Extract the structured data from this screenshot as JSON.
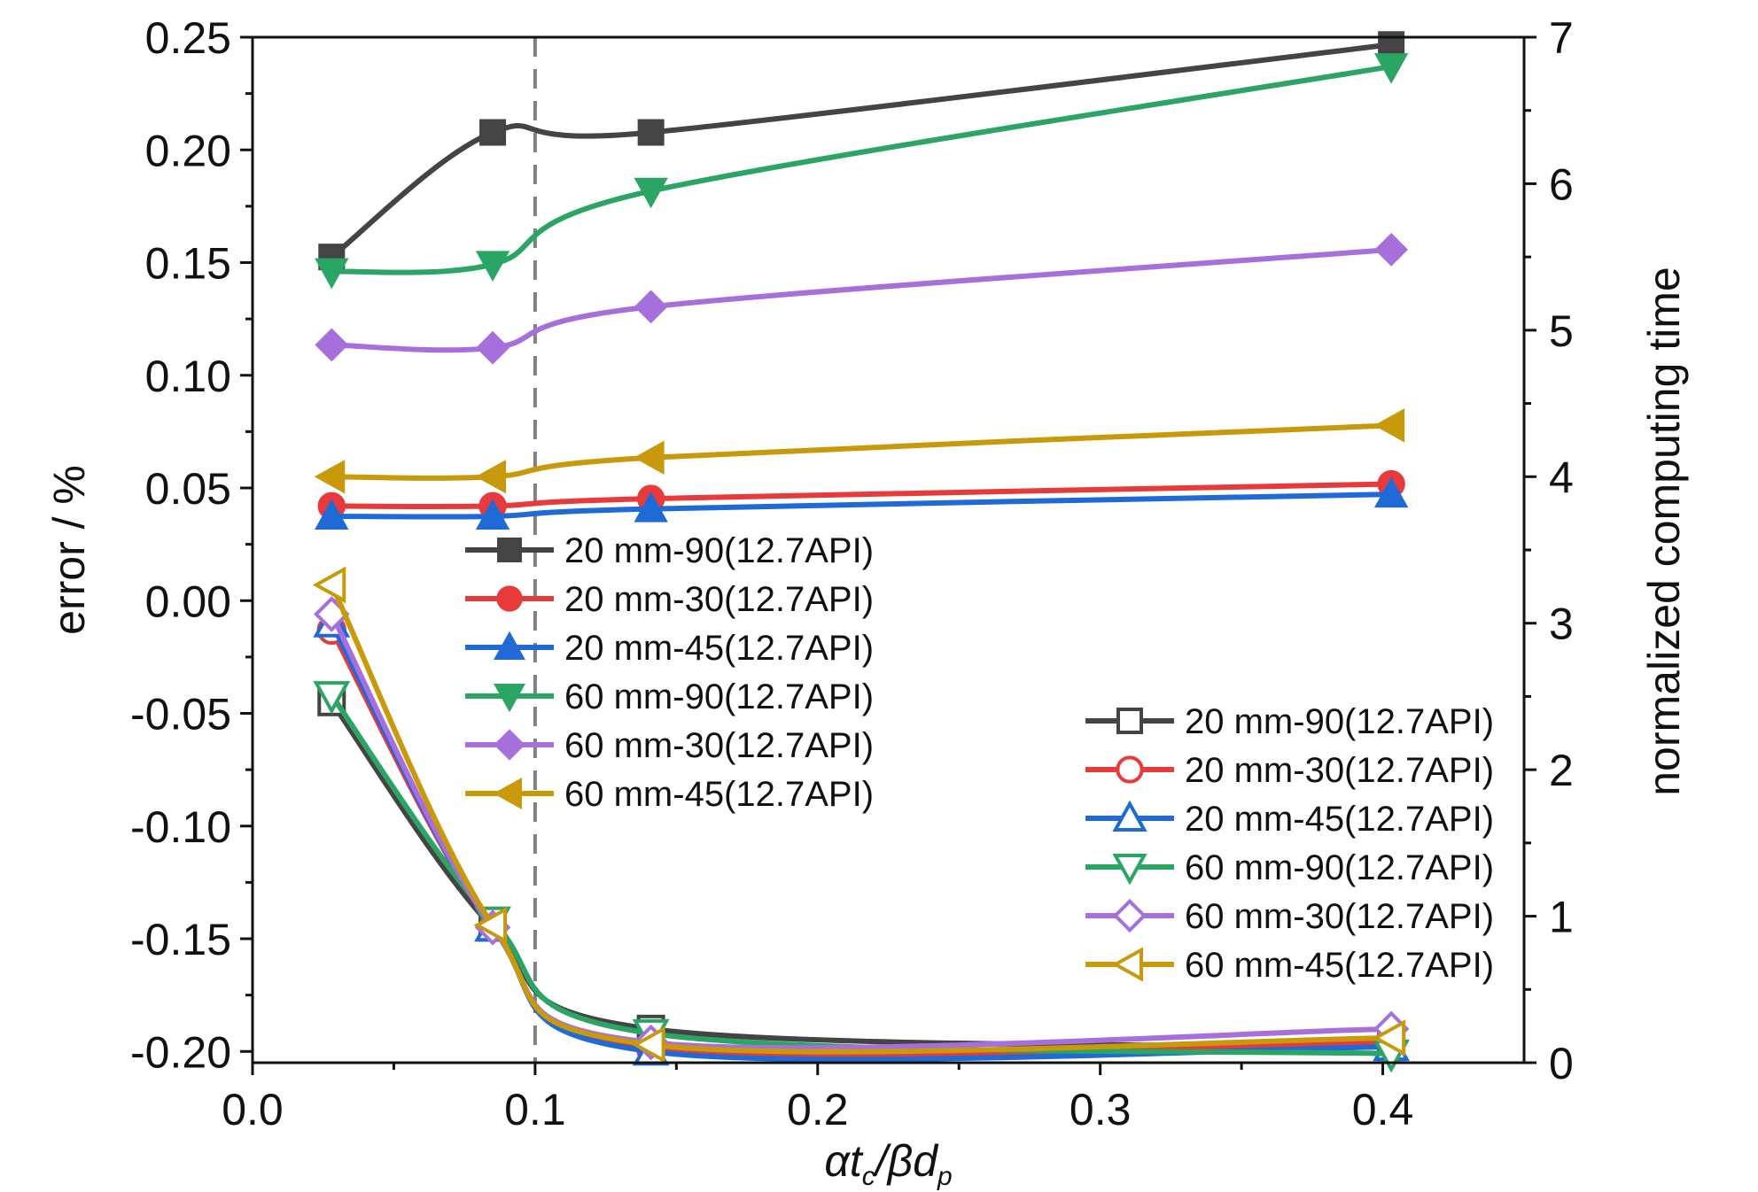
{
  "chart_data": {
    "type": "line",
    "x_axis": {
      "label_parts": [
        "αt",
        "c",
        "/βd",
        "p"
      ],
      "range": [
        0.0,
        0.45
      ],
      "ticks": [
        0.0,
        0.1,
        0.2,
        0.3,
        0.4
      ],
      "tick_labels": [
        "0.0",
        "0.1",
        "0.2",
        "0.3",
        "0.4"
      ]
    },
    "y_left": {
      "label": "error / %",
      "range": [
        -0.205,
        0.25
      ],
      "ticks": [
        0.25,
        0.2,
        0.15,
        0.1,
        0.05,
        0.0,
        -0.05,
        -0.1,
        -0.15,
        -0.2
      ],
      "tick_labels": [
        "0.25",
        "0.20",
        "0.15",
        "0.10",
        "0.05",
        "0.00",
        "-0.05",
        "-0.10",
        "-0.15",
        "-0.20"
      ]
    },
    "y_right": {
      "label": "normalized computing time",
      "range": [
        0,
        7
      ],
      "ticks": [
        0,
        1,
        2,
        3,
        4,
        5,
        6,
        7
      ],
      "tick_labels": [
        "0",
        "1",
        "2",
        "3",
        "4",
        "5",
        "6",
        "7"
      ]
    },
    "vertical_reference_line": {
      "x": 0.1,
      "style": "dashed",
      "color": "#808080"
    },
    "x": [
      0.028,
      0.085,
      0.141,
      0.403
    ],
    "series": [
      {
        "name": "20 mm-90(12.7API)",
        "axis": "right",
        "marker": "square",
        "filled": true,
        "color": "#444444",
        "values": [
          5.5,
          6.35,
          6.35,
          6.95
        ]
      },
      {
        "name": "20 mm-30(12.7API)",
        "axis": "right",
        "marker": "circle",
        "filled": true,
        "color": "#e8393b",
        "values": [
          3.8,
          3.8,
          3.85,
          3.95
        ]
      },
      {
        "name": "20 mm-45(12.7API)",
        "axis": "right",
        "marker": "triangle-up",
        "filled": true,
        "color": "#1f6ad6",
        "values": [
          3.73,
          3.73,
          3.78,
          3.88
        ]
      },
      {
        "name": "60 mm-90(12.7API)",
        "axis": "right",
        "marker": "triangle-down",
        "filled": true,
        "color": "#2aa564",
        "values": [
          5.4,
          5.45,
          5.95,
          6.8
        ]
      },
      {
        "name": "60 mm-30(12.7API)",
        "axis": "right",
        "marker": "diamond",
        "filled": true,
        "color": "#a66fdb",
        "values": [
          4.9,
          4.88,
          5.16,
          5.55
        ]
      },
      {
        "name": "60 mm-45(12.7API)",
        "axis": "right",
        "marker": "triangle-left",
        "filled": true,
        "color": "#c89a0b",
        "values": [
          4.0,
          4.0,
          4.13,
          4.35
        ]
      },
      {
        "name": "20 mm-90(12.7API)",
        "axis": "left",
        "marker": "square",
        "filled": false,
        "color": "#444444",
        "values": [
          -0.045,
          -0.145,
          -0.19,
          -0.198
        ]
      },
      {
        "name": "20 mm-30(12.7API)",
        "axis": "left",
        "marker": "circle",
        "filled": false,
        "color": "#e8393b",
        "values": [
          -0.013,
          -0.145,
          -0.199,
          -0.196
        ]
      },
      {
        "name": "20 mm-45(12.7API)",
        "axis": "left",
        "marker": "triangle-up",
        "filled": false,
        "color": "#1f6ad6",
        "values": [
          -0.01,
          -0.145,
          -0.2,
          -0.198
        ]
      },
      {
        "name": "60 mm-90(12.7API)",
        "axis": "left",
        "marker": "triangle-down",
        "filled": false,
        "color": "#2aa564",
        "values": [
          -0.042,
          -0.142,
          -0.192,
          -0.201
        ]
      },
      {
        "name": "60 mm-30(12.7API)",
        "axis": "left",
        "marker": "diamond",
        "filled": false,
        "color": "#a66fdb",
        "values": [
          -0.006,
          -0.145,
          -0.196,
          -0.19
        ]
      },
      {
        "name": "60 mm-45(12.7API)",
        "axis": "left",
        "marker": "triangle-left",
        "filled": false,
        "color": "#c89a0b",
        "values": [
          0.007,
          -0.144,
          -0.197,
          -0.194
        ]
      }
    ],
    "legends": [
      {
        "placement": "center",
        "series_indices": [
          0,
          1,
          2,
          3,
          4,
          5
        ]
      },
      {
        "placement": "bottom-right",
        "series_indices": [
          6,
          7,
          8,
          9,
          10,
          11
        ]
      }
    ]
  }
}
